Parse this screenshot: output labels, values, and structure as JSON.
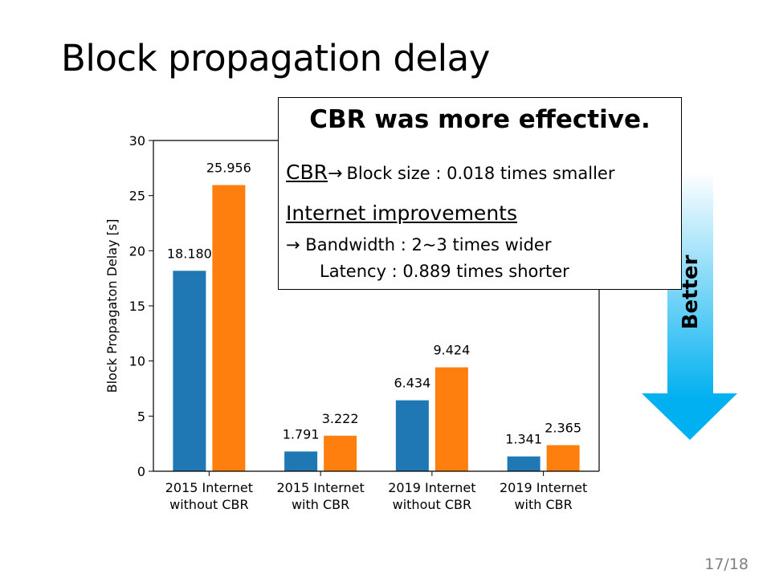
{
  "slide": {
    "title": "Block propagation delay",
    "page_number": "17/18"
  },
  "callout": {
    "heading": "CBR was more effective.",
    "cbr_label": "CBR",
    "arrow": "→",
    "cbr_detail": "Block size : 0.018 times smaller",
    "internet_label": "Internet improvements",
    "bandwidth_text": "Bandwidth : 2~3 times wider",
    "latency_text": "Latency : 0.889 times shorter"
  },
  "better_arrow": {
    "label": "Better",
    "color_top": "#ffffff",
    "color_bottom": "#00b0f0"
  },
  "chart_data": {
    "type": "bar",
    "ylabel": "Block Propagaton Delay [s]",
    "xlabel": "",
    "ylim": [
      0,
      30
    ],
    "yticks": [
      0,
      5,
      10,
      15,
      20,
      25,
      30
    ],
    "grid": false,
    "categories": [
      "2015 Internet\nwithout CBR",
      "2015 Internet\nwith CBR",
      "2019 Internet\nwithout CBR",
      "2019 Internet\nwith CBR"
    ],
    "series": [
      {
        "color": "#1f77b4",
        "values": [
          18.18,
          1.791,
          6.434,
          1.341
        ],
        "labels": [
          "18.180",
          "1.791",
          "6.434",
          "1.341"
        ]
      },
      {
        "color": "#ff7f0e",
        "values": [
          25.956,
          3.222,
          9.424,
          2.365
        ],
        "labels": [
          "25.956",
          "3.222",
          "9.424",
          "2.365"
        ]
      }
    ]
  }
}
